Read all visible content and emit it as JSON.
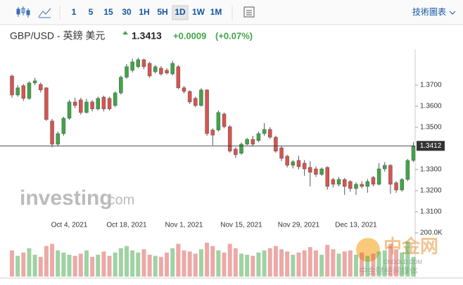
{
  "toolbar": {
    "intervals": [
      "1",
      "5",
      "15",
      "30",
      "1H",
      "5H",
      "1D",
      "1W",
      "1M"
    ],
    "chart_tools_label": "技術圖表"
  },
  "header": {
    "symbol": "GBP/USD - 英鎊 美元",
    "price": 1.3413,
    "change": {
      "value": 0.0009,
      "label": "+0.0009"
    },
    "change_percent": {
      "value": 0.07,
      "label": "(+0.07%)"
    }
  },
  "chart_data": {
    "type": "candlestick",
    "categories": [
      null,
      null,
      null,
      null,
      null,
      null,
      null,
      null,
      null,
      null,
      "Oct 4, 2021",
      null,
      null,
      null,
      null,
      null,
      null,
      null,
      null,
      null,
      "Oct 18, 2021",
      null,
      null,
      null,
      null,
      null,
      null,
      null,
      null,
      null,
      "Nov 1, 2021",
      null,
      null,
      null,
      null,
      null,
      null,
      null,
      null,
      null,
      "Nov 15, 2021",
      null,
      null,
      null,
      null,
      null,
      null,
      null,
      null,
      null,
      "Nov 29, 2021",
      null,
      null,
      null,
      null,
      null,
      null,
      null,
      null,
      null,
      "Dec 13, 2021",
      null,
      null,
      null,
      null,
      null,
      null,
      null,
      null,
      null,
      null
    ],
    "open": [
      1.3743,
      1.3653,
      1.3697,
      1.3637,
      1.371,
      1.3703,
      1.3687,
      1.353,
      1.342,
      1.347,
      1.3543,
      1.362,
      1.363,
      1.357,
      1.362,
      1.3587,
      1.3643,
      1.3637,
      1.3603,
      1.3663,
      1.3737,
      1.377,
      1.3787,
      1.382,
      1.3803,
      1.3763,
      1.378,
      1.377,
      1.3753,
      1.3787,
      1.3687,
      1.367,
      1.3637,
      1.3603,
      1.3677,
      1.3487,
      1.3487,
      1.3563,
      1.3503,
      1.3397,
      1.3377,
      1.342,
      1.3443,
      1.3437,
      1.347,
      1.349,
      1.3453,
      1.3403,
      1.3363,
      1.332,
      1.3343,
      1.333,
      1.331,
      1.3303,
      1.3277,
      1.331,
      1.3253,
      1.323,
      1.3253,
      1.3243,
      1.321,
      1.323,
      1.322,
      1.3263,
      1.323,
      1.3303,
      1.332,
      1.3237,
      1.3203,
      1.3253,
      1.3343
    ],
    "high": [
      1.375,
      1.37,
      1.3705,
      1.3718,
      1.3735,
      1.3712,
      1.369,
      1.354,
      1.348,
      1.355,
      1.363,
      1.364,
      1.364,
      1.3635,
      1.363,
      1.3645,
      1.365,
      1.3645,
      1.367,
      1.3745,
      1.38,
      1.3825,
      1.383,
      1.3825,
      1.381,
      1.3795,
      1.379,
      1.378,
      1.3815,
      1.3795,
      1.3695,
      1.3675,
      1.3645,
      1.3685,
      1.368,
      1.3495,
      1.358,
      1.357,
      1.351,
      1.3405,
      1.3428,
      1.345,
      1.346,
      1.348,
      1.352,
      1.35,
      1.346,
      1.341,
      1.337,
      1.3345,
      1.3365,
      1.3345,
      1.334,
      1.3315,
      1.331,
      1.3315,
      1.326,
      1.3265,
      1.326,
      1.325,
      1.324,
      1.3245,
      1.3255,
      1.327,
      1.333,
      1.3335,
      1.3325,
      1.3245,
      1.326,
      1.335,
      1.343
    ],
    "low": [
      1.364,
      1.3645,
      1.3625,
      1.363,
      1.37,
      1.3665,
      1.353,
      1.3405,
      1.341,
      1.346,
      1.3535,
      1.359,
      1.356,
      1.3565,
      1.3575,
      1.358,
      1.3575,
      1.358,
      1.3595,
      1.3655,
      1.373,
      1.376,
      1.378,
      1.3775,
      1.3735,
      1.3755,
      1.3745,
      1.375,
      1.3745,
      1.368,
      1.366,
      1.361,
      1.3595,
      1.3598,
      1.346,
      1.3415,
      1.348,
      1.3495,
      1.338,
      1.3355,
      1.337,
      1.3415,
      1.341,
      1.343,
      1.346,
      1.3445,
      1.338,
      1.334,
      1.331,
      1.3305,
      1.33,
      1.327,
      1.322,
      1.3265,
      1.327,
      1.3205,
      1.3215,
      1.322,
      1.318,
      1.3195,
      1.318,
      1.321,
      1.319,
      1.322,
      1.3225,
      1.329,
      1.3185,
      1.319,
      1.3195,
      1.3245,
      1.3335
    ],
    "close": [
      1.3653,
      1.3687,
      1.3637,
      1.371,
      1.372,
      1.3677,
      1.3537,
      1.342,
      1.347,
      1.3543,
      1.362,
      1.3603,
      1.357,
      1.362,
      1.3587,
      1.3637,
      1.3587,
      1.3587,
      1.3663,
      1.3737,
      1.3787,
      1.381,
      1.382,
      1.3787,
      1.3743,
      1.3787,
      1.3753,
      1.3757,
      1.3803,
      1.3687,
      1.367,
      1.362,
      1.3603,
      1.3677,
      1.347,
      1.3463,
      1.357,
      1.3503,
      1.3387,
      1.337,
      1.342,
      1.3443,
      1.342,
      1.347,
      1.349,
      1.3453,
      1.3387,
      1.3353,
      1.332,
      1.3337,
      1.3313,
      1.3303,
      1.3287,
      1.3277,
      1.3303,
      1.322,
      1.323,
      1.3253,
      1.322,
      1.321,
      1.323,
      1.322,
      1.3243,
      1.323,
      1.3303,
      1.332,
      1.323,
      1.3203,
      1.3253,
      1.3343,
      1.341
    ],
    "up_color": "#3fa548",
    "down_color": "#d9534f",
    "ylim": [
      1.3053,
      1.3853
    ],
    "yticks": [
      {
        "value": 1.31,
        "label": "1.3100"
      },
      {
        "value": 1.32,
        "label": "1.3200"
      },
      {
        "value": 1.33,
        "label": "1.3300"
      },
      {
        "value": 1.35,
        "label": "1.3500"
      },
      {
        "value": 1.36,
        "label": "1.3600"
      },
      {
        "value": 1.37,
        "label": "1.3700"
      }
    ],
    "price_line": 1.3412,
    "volume": {
      "values": [
        120000,
        95000,
        110000,
        130000,
        100000,
        90000,
        140000,
        150000,
        120000,
        110000,
        100000,
        95000,
        105000,
        120000,
        90000,
        100000,
        115000,
        95000,
        110000,
        130000,
        140000,
        120000,
        110000,
        125000,
        100000,
        95000,
        90000,
        110000,
        130000,
        150000,
        120000,
        115000,
        105000,
        125000,
        155000,
        140000,
        120000,
        110000,
        150000,
        130000,
        105000,
        100000,
        95000,
        110000,
        120000,
        130000,
        140000,
        125000,
        115000,
        100000,
        110000,
        120000,
        135000,
        120000,
        100000,
        145000,
        125000,
        105000,
        115000,
        120000,
        100000,
        110000,
        95000,
        105000,
        115000,
        120000,
        150000,
        125000,
        110000,
        160000,
        90000
      ],
      "ylim": [
        0,
        200000
      ],
      "yticks": [
        {
          "value": 200000,
          "label": "200.0K"
        }
      ]
    },
    "watermark": {
      "logo": [
        "investing",
        ".com"
      ],
      "site": [
        "中金网",
        "CNGOLD.COM",
        "中金财经网媒体"
      ]
    }
  }
}
